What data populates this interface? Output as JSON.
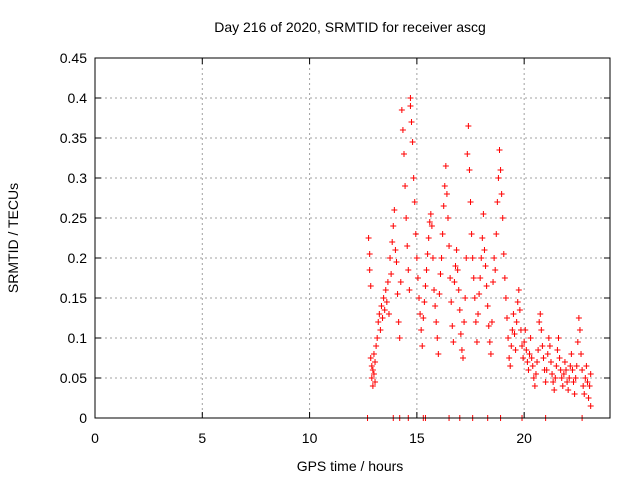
{
  "chart_data": {
    "type": "scatter",
    "title": "Day 216 of 2020, SRMTID for receiver ascg",
    "xlabel": "GPS time / hours",
    "ylabel": "SRMTID / TECUs",
    "xlim": [
      0,
      24
    ],
    "ylim": [
      0,
      0.45
    ],
    "xticks": [
      0,
      5,
      10,
      15,
      20
    ],
    "yticks": [
      0,
      0.05,
      0.1,
      0.15,
      0.2,
      0.25,
      0.3,
      0.35,
      0.4,
      0.45
    ],
    "xtick_labels": [
      "0",
      "5",
      "10",
      "15",
      "20"
    ],
    "ytick_labels": [
      "0",
      "0.05",
      "0.1",
      "0.15",
      "0.2",
      "0.25",
      "0.3",
      "0.35",
      "0.4",
      "0.45"
    ],
    "grid": true,
    "marker": "+",
    "color": "#ff0000",
    "series": [
      {
        "name": "SRMTID",
        "points": [
          [
            12.7,
            0.0
          ],
          [
            13.9,
            0.0
          ],
          [
            14.2,
            0.0
          ],
          [
            14.6,
            0.0
          ],
          [
            15.3,
            0.0
          ],
          [
            15.4,
            0.0
          ],
          [
            16.5,
            0.0
          ],
          [
            17.0,
            0.0
          ],
          [
            17.6,
            0.0
          ],
          [
            18.3,
            0.0
          ],
          [
            18.9,
            0.0
          ],
          [
            19.9,
            0.0
          ],
          [
            21.0,
            0.0
          ],
          [
            22.7,
            0.0
          ],
          [
            12.75,
            0.225
          ],
          [
            12.8,
            0.205
          ],
          [
            12.8,
            0.185
          ],
          [
            12.85,
            0.165
          ],
          [
            12.85,
            0.075
          ],
          [
            12.9,
            0.065
          ],
          [
            12.9,
            0.05
          ],
          [
            12.95,
            0.04
          ],
          [
            12.95,
            0.06
          ],
          [
            13.0,
            0.08
          ],
          [
            13.0,
            0.055
          ],
          [
            13.05,
            0.045
          ],
          [
            13.05,
            0.07
          ],
          [
            13.1,
            0.09
          ],
          [
            13.15,
            0.1
          ],
          [
            13.2,
            0.12
          ],
          [
            13.25,
            0.13
          ],
          [
            13.3,
            0.11
          ],
          [
            13.35,
            0.14
          ],
          [
            13.4,
            0.125
          ],
          [
            13.45,
            0.15
          ],
          [
            13.5,
            0.135
          ],
          [
            13.55,
            0.16
          ],
          [
            13.6,
            0.145
          ],
          [
            13.65,
            0.17
          ],
          [
            13.7,
            0.13
          ],
          [
            13.75,
            0.2
          ],
          [
            13.8,
            0.18
          ],
          [
            13.85,
            0.22
          ],
          [
            13.9,
            0.24
          ],
          [
            13.95,
            0.26
          ],
          [
            14.0,
            0.21
          ],
          [
            14.05,
            0.195
          ],
          [
            14.1,
            0.155
          ],
          [
            14.15,
            0.12
          ],
          [
            14.2,
            0.1
          ],
          [
            14.25,
            0.17
          ],
          [
            14.3,
            0.385
          ],
          [
            14.35,
            0.36
          ],
          [
            14.4,
            0.33
          ],
          [
            14.45,
            0.29
          ],
          [
            14.5,
            0.25
          ],
          [
            14.55,
            0.215
          ],
          [
            14.6,
            0.185
          ],
          [
            14.65,
            0.16
          ],
          [
            14.7,
            0.4
          ],
          [
            14.7,
            0.39
          ],
          [
            14.75,
            0.37
          ],
          [
            14.8,
            0.345
          ],
          [
            14.85,
            0.3
          ],
          [
            14.9,
            0.27
          ],
          [
            14.95,
            0.23
          ],
          [
            15.0,
            0.2
          ],
          [
            15.05,
            0.175
          ],
          [
            15.1,
            0.15
          ],
          [
            15.15,
            0.13
          ],
          [
            15.2,
            0.11
          ],
          [
            15.25,
            0.09
          ],
          [
            15.3,
            0.125
          ],
          [
            15.35,
            0.145
          ],
          [
            15.4,
            0.165
          ],
          [
            15.45,
            0.185
          ],
          [
            15.5,
            0.205
          ],
          [
            15.55,
            0.225
          ],
          [
            15.6,
            0.245
          ],
          [
            15.65,
            0.255
          ],
          [
            15.7,
            0.24
          ],
          [
            15.75,
            0.2
          ],
          [
            15.8,
            0.16
          ],
          [
            15.85,
            0.14
          ],
          [
            15.9,
            0.12
          ],
          [
            15.95,
            0.1
          ],
          [
            16.0,
            0.08
          ],
          [
            16.05,
            0.155
          ],
          [
            16.1,
            0.18
          ],
          [
            16.15,
            0.2
          ],
          [
            16.2,
            0.23
          ],
          [
            16.25,
            0.265
          ],
          [
            16.3,
            0.29
          ],
          [
            16.35,
            0.315
          ],
          [
            16.4,
            0.28
          ],
          [
            16.45,
            0.25
          ],
          [
            16.5,
            0.215
          ],
          [
            16.55,
            0.175
          ],
          [
            16.6,
            0.145
          ],
          [
            16.65,
            0.115
          ],
          [
            16.7,
            0.095
          ],
          [
            16.75,
            0.17
          ],
          [
            16.8,
            0.19
          ],
          [
            16.85,
            0.21
          ],
          [
            16.9,
            0.185
          ],
          [
            16.95,
            0.16
          ],
          [
            17.0,
            0.135
          ],
          [
            17.05,
            0.105
          ],
          [
            17.1,
            0.085
          ],
          [
            17.15,
            0.075
          ],
          [
            17.2,
            0.12
          ],
          [
            17.25,
            0.15
          ],
          [
            17.3,
            0.2
          ],
          [
            17.35,
            0.33
          ],
          [
            17.4,
            0.365
          ],
          [
            17.45,
            0.31
          ],
          [
            17.5,
            0.27
          ],
          [
            17.55,
            0.23
          ],
          [
            17.6,
            0.2
          ],
          [
            17.65,
            0.175
          ],
          [
            17.7,
            0.15
          ],
          [
            17.75,
            0.12
          ],
          [
            17.8,
            0.095
          ],
          [
            17.85,
            0.13
          ],
          [
            17.9,
            0.155
          ],
          [
            17.95,
            0.175
          ],
          [
            18.0,
            0.2
          ],
          [
            18.05,
            0.225
          ],
          [
            18.1,
            0.255
          ],
          [
            18.15,
            0.21
          ],
          [
            18.2,
            0.19
          ],
          [
            18.25,
            0.165
          ],
          [
            18.3,
            0.14
          ],
          [
            18.35,
            0.115
          ],
          [
            18.4,
            0.095
          ],
          [
            18.45,
            0.08
          ],
          [
            18.5,
            0.12
          ],
          [
            18.55,
            0.17
          ],
          [
            18.6,
            0.2
          ],
          [
            18.65,
            0.185
          ],
          [
            18.7,
            0.23
          ],
          [
            18.75,
            0.27
          ],
          [
            18.8,
            0.3
          ],
          [
            18.85,
            0.335
          ],
          [
            18.9,
            0.31
          ],
          [
            18.95,
            0.28
          ],
          [
            19.0,
            0.25
          ],
          [
            19.05,
            0.205
          ],
          [
            19.1,
            0.175
          ],
          [
            19.15,
            0.15
          ],
          [
            19.2,
            0.125
          ],
          [
            19.25,
            0.1
          ],
          [
            19.3,
            0.075
          ],
          [
            19.35,
            0.065
          ],
          [
            19.4,
            0.09
          ],
          [
            19.45,
            0.11
          ],
          [
            19.5,
            0.13
          ],
          [
            19.55,
            0.105
          ],
          [
            19.6,
            0.085
          ],
          [
            19.65,
            0.12
          ],
          [
            19.7,
            0.145
          ],
          [
            19.75,
            0.16
          ],
          [
            19.8,
            0.135
          ],
          [
            19.85,
            0.11
          ],
          [
            19.9,
            0.09
          ],
          [
            19.95,
            0.075
          ],
          [
            20.0,
            0.095
          ],
          [
            20.05,
            0.11
          ],
          [
            20.1,
            0.085
          ],
          [
            20.15,
            0.07
          ],
          [
            20.2,
            0.06
          ],
          [
            20.25,
            0.08
          ],
          [
            20.3,
            0.1
          ],
          [
            20.35,
            0.075
          ],
          [
            20.4,
            0.065
          ],
          [
            20.45,
            0.05
          ],
          [
            20.5,
            0.04
          ],
          [
            20.55,
            0.055
          ],
          [
            20.6,
            0.07
          ],
          [
            20.65,
            0.085
          ],
          [
            20.7,
            0.12
          ],
          [
            20.75,
            0.13
          ],
          [
            20.8,
            0.11
          ],
          [
            20.85,
            0.09
          ],
          [
            20.9,
            0.075
          ],
          [
            20.95,
            0.06
          ],
          [
            21.0,
            0.045
          ],
          [
            21.05,
            0.06
          ],
          [
            21.1,
            0.08
          ],
          [
            21.15,
            0.1
          ],
          [
            21.2,
            0.09
          ],
          [
            21.25,
            0.07
          ],
          [
            21.3,
            0.055
          ],
          [
            21.35,
            0.045
          ],
          [
            21.4,
            0.035
          ],
          [
            21.45,
            0.05
          ],
          [
            21.5,
            0.065
          ],
          [
            21.55,
            0.085
          ],
          [
            21.6,
            0.1
          ],
          [
            21.65,
            0.075
          ],
          [
            21.7,
            0.06
          ],
          [
            21.75,
            0.05
          ],
          [
            21.8,
            0.04
          ],
          [
            21.85,
            0.055
          ],
          [
            21.9,
            0.07
          ],
          [
            21.95,
            0.06
          ],
          [
            22.0,
            0.045
          ],
          [
            22.05,
            0.035
          ],
          [
            22.1,
            0.05
          ],
          [
            22.15,
            0.065
          ],
          [
            22.2,
            0.08
          ],
          [
            22.25,
            0.06
          ],
          [
            22.3,
            0.045
          ],
          [
            22.35,
            0.03
          ],
          [
            22.4,
            0.05
          ],
          [
            22.45,
            0.065
          ],
          [
            22.5,
            0.095
          ],
          [
            22.55,
            0.125
          ],
          [
            22.6,
            0.11
          ],
          [
            22.65,
            0.08
          ],
          [
            22.7,
            0.06
          ],
          [
            22.75,
            0.04
          ],
          [
            22.8,
            0.03
          ],
          [
            22.85,
            0.05
          ],
          [
            22.9,
            0.065
          ],
          [
            22.95,
            0.045
          ],
          [
            23.0,
            0.025
          ],
          [
            23.05,
            0.04
          ],
          [
            23.1,
            0.015
          ],
          [
            23.1,
            0.055
          ]
        ]
      }
    ]
  }
}
